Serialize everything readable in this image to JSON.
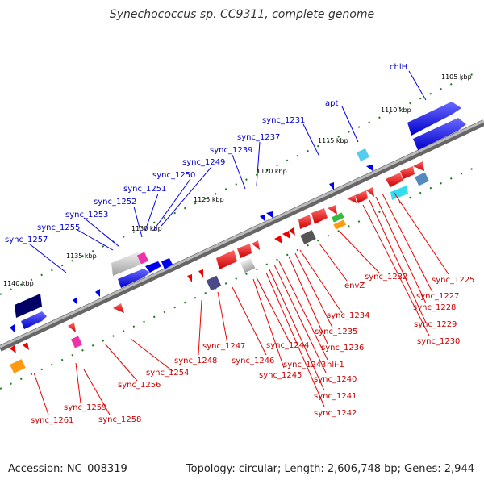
{
  "title": "Synechococcus sp. CC9311, complete genome",
  "accession": "Accession: NC_008319",
  "summary": "Topology: circular; Length: 2,606,748 bp; Genes: 2,944",
  "kbp_labels": [
    "1105 kbp",
    "1110 kbp",
    "1115 kbp",
    "1120 kbp",
    "1125 kbp",
    "1130 kbp",
    "1135 kbp",
    "1140 kbp"
  ],
  "upper_genes": [
    "chlH",
    "apt",
    "sync_1231",
    "sync_1237",
    "sync_1239",
    "sync_1249",
    "sync_1250",
    "sync_1251",
    "sync_1252",
    "sync_1253",
    "sync_1255",
    "sync_1257"
  ],
  "lower_genes": [
    "sync_1225",
    "sync_1227",
    "sync_1228",
    "sync_1229",
    "sync_1230",
    "sync_1232",
    "envZ",
    "sync_1234",
    "sync_1235",
    "sync_1236",
    "sync_1244",
    "sync_1243",
    "hli-1",
    "sync_1240",
    "sync_1241",
    "sync_1242",
    "sync_1245",
    "sync_1246",
    "sync_1247",
    "sync_1248",
    "sync_1254",
    "sync_1256",
    "sync_1258",
    "sync_1259",
    "sync_1261"
  ],
  "colors": {
    "blue": "#0000ee",
    "red": "#ee0000",
    "green": "#228822",
    "backbone": "#888888"
  }
}
